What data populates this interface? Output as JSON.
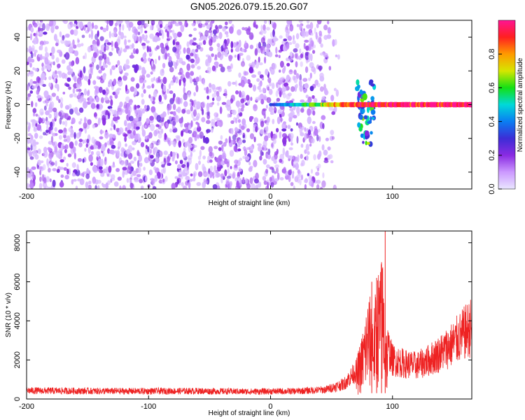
{
  "title": "GN05.2026.079.15.20.G07",
  "colors": {
    "snr_line": "#ee2222",
    "scatter_base": "#7a00e0",
    "colormap": [
      "#e9e6ff",
      "#cc99ff",
      "#8a2be2",
      "#3c2dd6",
      "#0a7df2",
      "#00d9d9",
      "#14e014",
      "#d6e600",
      "#ff9a00",
      "#ff2020",
      "#ff1493"
    ]
  },
  "chart_data": [
    {
      "type": "heatmap",
      "xlabel": "Height of straight line (km)",
      "ylabel": "Frequency (Hz)",
      "xlim": [
        -200,
        165
      ],
      "ylim": [
        -50,
        50
      ],
      "xticks": [
        -200,
        -100,
        0,
        100
      ],
      "yticks": [
        -40,
        -20,
        0,
        20,
        40
      ],
      "colorbar": {
        "label": "Normalized spectral amplitude",
        "range": [
          0.0,
          1.0
        ],
        "ticks": [
          "0.0",
          "0.2",
          "0.4",
          "0.6",
          "0.8"
        ]
      },
      "noise_region": {
        "x_range": [
          -200,
          45
        ],
        "freq_range": [
          -50,
          50
        ],
        "amplitude": [
          0.05,
          0.25
        ]
      },
      "signal_band": {
        "x_range": [
          0,
          165
        ],
        "freq": 0,
        "amplitude_start": 0.3,
        "amplitude_end": 0.95
      },
      "burst": {
        "x_center": 78,
        "freq_range": [
          -25,
          15
        ],
        "amplitude": 0.5
      }
    },
    {
      "type": "line",
      "xlabel": "Height of straight line (km)",
      "ylabel": "SNR (10 * v/v)",
      "xlim": [
        -200,
        165
      ],
      "ylim": [
        0,
        8600
      ],
      "xticks": [
        -200,
        -100,
        0,
        100
      ],
      "yticks": [
        0,
        2000,
        4000,
        6000,
        8000
      ],
      "series": [
        {
          "envelope": {
            "x": [
              -200,
              -120,
              -60,
              -20,
              20,
              45,
              60,
              70,
              75,
              80,
              85,
              88,
              92,
              95,
              100,
              110,
              120,
              130,
              140,
              150,
              160,
              165
            ],
            "y": [
              450,
              420,
              430,
              400,
              420,
              500,
              800,
              1500,
              2600,
              4200,
              3800,
              5200,
              5600,
              3000,
              2100,
              1900,
              1800,
              2100,
              2500,
              3000,
              3600,
              3900
            ]
          },
          "peaks": {
            "x": [
              83,
              87,
              91,
              94
            ],
            "y": [
              6000,
              6200,
              7000,
              8600
            ]
          }
        }
      ]
    }
  ]
}
